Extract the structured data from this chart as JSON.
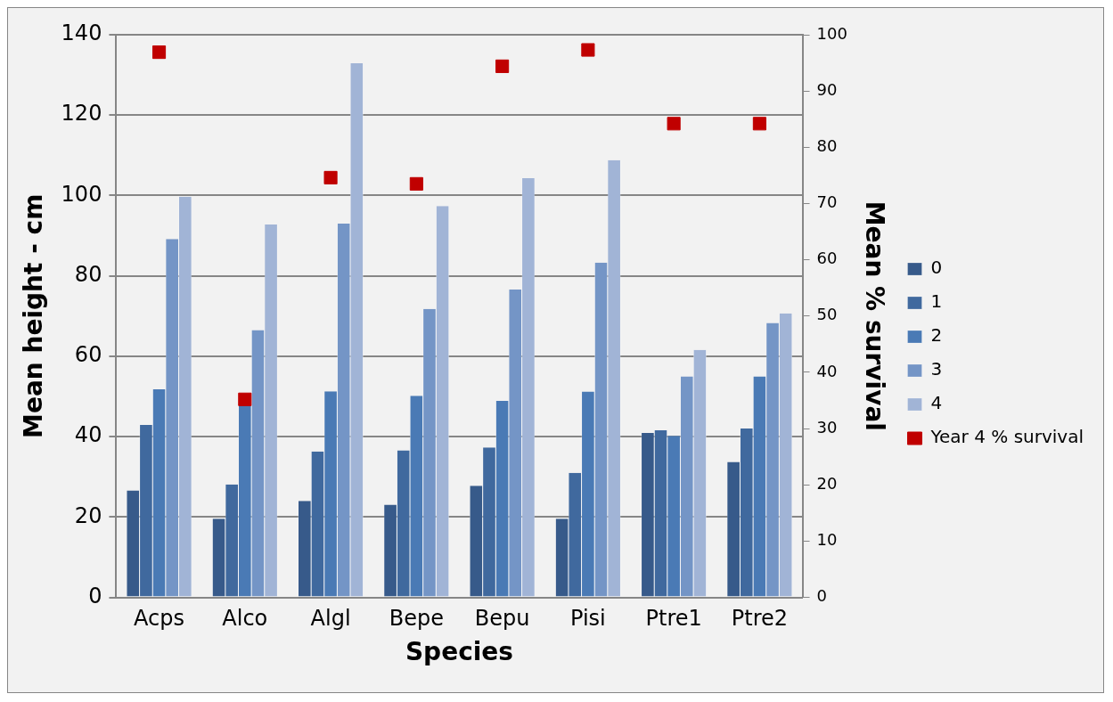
{
  "chart_data": {
    "type": "bar",
    "xlabel": "Species",
    "ylabel": "Mean height - cm",
    "y2label": "Mean % survival",
    "categories": [
      "Acps",
      "Alco",
      "Algl",
      "Bepe",
      "Bepu",
      "Pisi",
      "Ptre1",
      "Ptre2"
    ],
    "series": [
      {
        "name": "0",
        "color": "#375a8a",
        "values": [
          26.6,
          19.6,
          24.0,
          23.1,
          27.8,
          19.6,
          40.9,
          33.7
        ]
      },
      {
        "name": "1",
        "color": "#40699e",
        "values": [
          42.9,
          28.1,
          36.3,
          36.6,
          37.3,
          31.0,
          41.6,
          42.0
        ]
      },
      {
        "name": "2",
        "color": "#4a7ab5",
        "values": [
          51.8,
          48,
          51.3,
          50.2,
          48.9,
          51.2,
          40.2,
          55.0
        ]
      },
      {
        "name": "3",
        "color": "#7495c6",
        "values": [
          89.2,
          66.5,
          93.0,
          71.8,
          76.6,
          83.3,
          55.0,
          68.3
        ]
      },
      {
        "name": "4",
        "color": "#a1b4d6",
        "values": [
          99.7,
          92.8,
          132.9,
          97.4,
          104.3,
          108.8,
          61.6,
          70.7
        ]
      },
      {
        "name": "Year 4 % survival",
        "type": "scatter",
        "axis": "y2",
        "color": "#c00000",
        "x": [
          "Acps",
          "Alco",
          "Algl",
          "Bepe",
          "Bepu",
          "Pisi",
          "Ptre1",
          "Ptre2"
        ],
        "values": [
          96.9,
          35.2,
          74.6,
          73.5,
          94.4,
          97.3,
          84.2,
          84.2
        ]
      }
    ],
    "ylim": [
      0,
      140
    ],
    "yticks": [
      0,
      20,
      40,
      60,
      80,
      100,
      120,
      140
    ],
    "y2lim": [
      0,
      100
    ],
    "y2ticks": [
      0,
      10,
      20,
      30,
      40,
      50,
      60,
      70,
      80,
      90,
      100
    ],
    "grid": "y",
    "legend": "right",
    "marker": "square"
  }
}
